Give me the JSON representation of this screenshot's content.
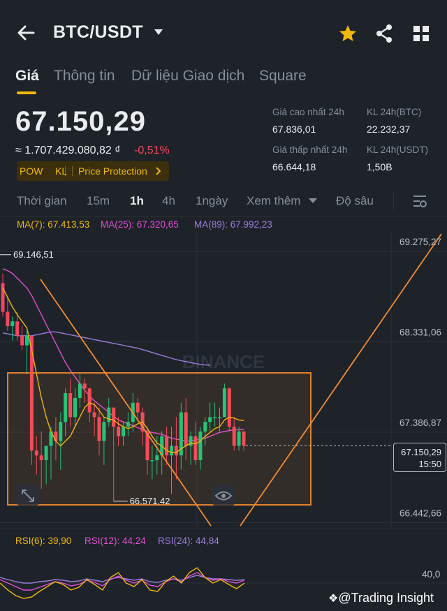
{
  "header": {
    "pair": "BTC/USDT",
    "icons": [
      "back-arrow-icon",
      "chevron-down-icon",
      "star-icon",
      "share-icon",
      "grid-icon"
    ],
    "favorite_color": "#f0b90b"
  },
  "tabs": [
    {
      "label": "Giá",
      "active": true
    },
    {
      "label": "Thông tin",
      "active": false
    },
    {
      "label": "Dữ liệu Giao dịch",
      "active": false
    },
    {
      "label": "Square",
      "active": false
    }
  ],
  "ticker": {
    "last_price": "67.150,29",
    "fiat_value": "≈ 1.707.429.080,82 ₫",
    "change_pct": "-0,51%",
    "tags": [
      "POW",
      "KL",
      "Price Protection"
    ],
    "stats": {
      "high_label": "Giá cao nhất 24h",
      "high_value": "67.836,01",
      "vol_btc_label": "KL 24h(BTC)",
      "vol_btc_value": "22.232,37",
      "low_label": "Giá thấp nhất 24h",
      "low_value": "66.644,18",
      "vol_usdt_label": "KL 24h(USDT)",
      "vol_usdt_value": "1,50B"
    }
  },
  "timeframes": [
    {
      "label": "Thời gian",
      "active": false
    },
    {
      "label": "15m",
      "active": false
    },
    {
      "label": "1h",
      "active": true
    },
    {
      "label": "4h",
      "active": false
    },
    {
      "label": "1ngày",
      "active": false
    },
    {
      "label": "Xem thêm",
      "active": false
    },
    {
      "label": "Độ sâu",
      "active": false
    }
  ],
  "indicators": {
    "ma7": "MA(7): 67.413,53",
    "ma25": "MA(25): 67.320,65",
    "ma89": "MA(89): 67.992,23",
    "rsi6": "RSI(6): 39,90",
    "rsi12": "RSI(12): 44,24",
    "rsi24": "RSI(24): 44,84"
  },
  "colors": {
    "up": "#0ecb81",
    "down": "#f6465d",
    "ma7": "#f0b90b",
    "ma25": "#e04fd4",
    "ma89": "#9b7cdb",
    "rsi6": "#f0b90b",
    "rsi12": "#e04fd4",
    "rsi24": "#9b7cdb",
    "drawing": "#f28b30"
  },
  "chart_data": {
    "type": "candlestick",
    "symbol": "BTC/USDT",
    "interval": "1h",
    "y_axis_ticks": [
      "69.275,27",
      "68.331,06",
      "67.386,87",
      "66.442,66"
    ],
    "y_axis_values": [
      69275.27,
      68331.06,
      67386.87,
      66442.66
    ],
    "ylim": [
      66300,
      69400
    ],
    "annotations": {
      "period_high": "69.146,51",
      "period_high_value": 69146.51,
      "period_low": "66.571,42",
      "period_low_value": 66571.42,
      "current_price": "67.150,29",
      "current_price_value": 67150.29,
      "current_time": "15:50"
    },
    "candles": [
      {
        "o": 68850,
        "h": 68950,
        "l": 68500,
        "c": 68550
      },
      {
        "o": 68550,
        "h": 68700,
        "l": 68350,
        "c": 68400
      },
      {
        "o": 68400,
        "h": 68500,
        "l": 68250,
        "c": 68450
      },
      {
        "o": 68450,
        "h": 68550,
        "l": 68250,
        "c": 68300
      },
      {
        "o": 68300,
        "h": 68400,
        "l": 68150,
        "c": 68200
      },
      {
        "o": 68200,
        "h": 68350,
        "l": 67900,
        "c": 68300
      },
      {
        "o": 68300,
        "h": 68300,
        "l": 66950,
        "c": 67100
      },
      {
        "o": 67100,
        "h": 67250,
        "l": 66850,
        "c": 67050
      },
      {
        "o": 67050,
        "h": 67300,
        "l": 66700,
        "c": 67000
      },
      {
        "o": 67000,
        "h": 67150,
        "l": 66750,
        "c": 67150
      },
      {
        "o": 67150,
        "h": 67350,
        "l": 66800,
        "c": 67300
      },
      {
        "o": 67300,
        "h": 67450,
        "l": 67000,
        "c": 67200
      },
      {
        "o": 67200,
        "h": 67500,
        "l": 66900,
        "c": 67400
      },
      {
        "o": 67400,
        "h": 67750,
        "l": 67250,
        "c": 67700
      },
      {
        "o": 67700,
        "h": 67850,
        "l": 67350,
        "c": 67450
      },
      {
        "o": 67450,
        "h": 67750,
        "l": 67350,
        "c": 67650
      },
      {
        "o": 67650,
        "h": 67900,
        "l": 67550,
        "c": 67800
      },
      {
        "o": 67800,
        "h": 67850,
        "l": 67600,
        "c": 67750
      },
      {
        "o": 67750,
        "h": 67750,
        "l": 67400,
        "c": 67500
      },
      {
        "o": 67500,
        "h": 67600,
        "l": 67250,
        "c": 67450
      },
      {
        "o": 67450,
        "h": 67550,
        "l": 67050,
        "c": 67200
      },
      {
        "o": 67200,
        "h": 67450,
        "l": 66950,
        "c": 67400
      },
      {
        "o": 67400,
        "h": 67650,
        "l": 67350,
        "c": 67550
      },
      {
        "o": 67550,
        "h": 67550,
        "l": 66571,
        "c": 67350
      },
      {
        "o": 67350,
        "h": 67450,
        "l": 67150,
        "c": 67250
      },
      {
        "o": 67250,
        "h": 67400,
        "l": 67150,
        "c": 67350
      },
      {
        "o": 67350,
        "h": 67500,
        "l": 67250,
        "c": 67400
      },
      {
        "o": 67400,
        "h": 67700,
        "l": 67300,
        "c": 67600
      },
      {
        "o": 67600,
        "h": 67650,
        "l": 67400,
        "c": 67500
      },
      {
        "o": 67500,
        "h": 67550,
        "l": 67150,
        "c": 67300
      },
      {
        "o": 67300,
        "h": 67350,
        "l": 66850,
        "c": 67000
      },
      {
        "o": 67000,
        "h": 67150,
        "l": 66800,
        "c": 67000
      },
      {
        "o": 67000,
        "h": 67250,
        "l": 66850,
        "c": 67050
      },
      {
        "o": 67050,
        "h": 67300,
        "l": 66850,
        "c": 67250
      },
      {
        "o": 67250,
        "h": 67350,
        "l": 66950,
        "c": 67050
      },
      {
        "o": 67050,
        "h": 67350,
        "l": 66650,
        "c": 67150
      },
      {
        "o": 67150,
        "h": 67450,
        "l": 66800,
        "c": 67050
      },
      {
        "o": 67050,
        "h": 67600,
        "l": 66900,
        "c": 67500
      },
      {
        "o": 67500,
        "h": 67650,
        "l": 67000,
        "c": 67150
      },
      {
        "o": 67150,
        "h": 67300,
        "l": 66950,
        "c": 67250
      },
      {
        "o": 67250,
        "h": 67400,
        "l": 66950,
        "c": 67000
      },
      {
        "o": 67000,
        "h": 67350,
        "l": 66900,
        "c": 67300
      },
      {
        "o": 67300,
        "h": 67450,
        "l": 67150,
        "c": 67400
      },
      {
        "o": 67400,
        "h": 67600,
        "l": 67300,
        "c": 67450
      },
      {
        "o": 67450,
        "h": 67600,
        "l": 67350,
        "c": 67450
      },
      {
        "o": 67450,
        "h": 67550,
        "l": 67300,
        "c": 67450
      },
      {
        "o": 67450,
        "h": 67800,
        "l": 67450,
        "c": 67750
      },
      {
        "o": 67750,
        "h": 67750,
        "l": 67300,
        "c": 67350
      },
      {
        "o": 67350,
        "h": 67450,
        "l": 67100,
        "c": 67150
      },
      {
        "o": 67150,
        "h": 67350,
        "l": 67100,
        "c": 67300
      },
      {
        "o": 67300,
        "h": 67300,
        "l": 67100,
        "c": 67150
      }
    ],
    "ma7": [
      68800,
      68700,
      68600,
      68520,
      68450,
      68380,
      68150,
      67900,
      67650,
      67450,
      67300,
      67200,
      67150,
      67200,
      67250,
      67350,
      67450,
      67550,
      67600,
      67580,
      67520,
      67450,
      67430,
      67420,
      67380,
      67350,
      67330,
      67350,
      67380,
      67400,
      67330,
      67250,
      67180,
      67150,
      67100,
      67080,
      67080,
      67120,
      67150,
      67180,
      67170,
      67200,
      67250,
      67290,
      67330,
      67350,
      67420,
      67450,
      67440,
      67420,
      67413
    ],
    "ma25": [
      69000,
      68980,
      68950,
      68900,
      68850,
      68800,
      68720,
      68620,
      68520,
      68420,
      68320,
      68220,
      68120,
      68020,
      67940,
      67870,
      67800,
      67730,
      67670,
      67620,
      67580,
      67540,
      67500,
      67460,
      67420,
      67400,
      67380,
      67360,
      67340,
      67320,
      67300,
      67290,
      67280,
      67270,
      67250,
      67230,
      67220,
      67210,
      67200,
      67200,
      67210,
      67220,
      67230,
      67250,
      67270,
      67290,
      67300,
      67310,
      67315,
      67318,
      67320
    ],
    "ma89": [
      68330,
      68320,
      68310,
      68300,
      68300,
      68300,
      68300,
      68310,
      68320,
      68330,
      68340,
      68340,
      68330,
      68320,
      68310,
      68300,
      68290,
      68280,
      68270,
      68260,
      68250,
      68240,
      68230,
      68220,
      68210,
      68200,
      68190,
      68180,
      68170,
      68155,
      68140,
      68125,
      68110,
      68095,
      68080,
      68065,
      68050,
      68040,
      68030,
      68020,
      68010,
      68000,
      67995,
      67992
    ],
    "rsi6": [
      40,
      30,
      22,
      18,
      20,
      28,
      35,
      42,
      38,
      30,
      34,
      45,
      38,
      30,
      48,
      55,
      40,
      35,
      45,
      30,
      28,
      42,
      50,
      40,
      55,
      62,
      48,
      40,
      45,
      38,
      32,
      39.9
    ],
    "rsi12": [
      45,
      40,
      35,
      30,
      30,
      34,
      38,
      42,
      40,
      36,
      38,
      44,
      41,
      36,
      45,
      50,
      44,
      40,
      44,
      37,
      35,
      42,
      46,
      42,
      50,
      55,
      48,
      44,
      46,
      42,
      40,
      44.24
    ],
    "rsi24": [
      48,
      45,
      42,
      40,
      40,
      42,
      43,
      45,
      44,
      42,
      43,
      46,
      44,
      42,
      46,
      48,
      46,
      44,
      46,
      42,
      41,
      44,
      46,
      44,
      48,
      51,
      48,
      46,
      46,
      45,
      44,
      44.84
    ],
    "rsi_tick": "40,0",
    "rsi_tick_value": 40,
    "rsi_ylim": [
      0,
      90
    ]
  },
  "watermark": "BINANCE",
  "credit": "@Trading Insight"
}
